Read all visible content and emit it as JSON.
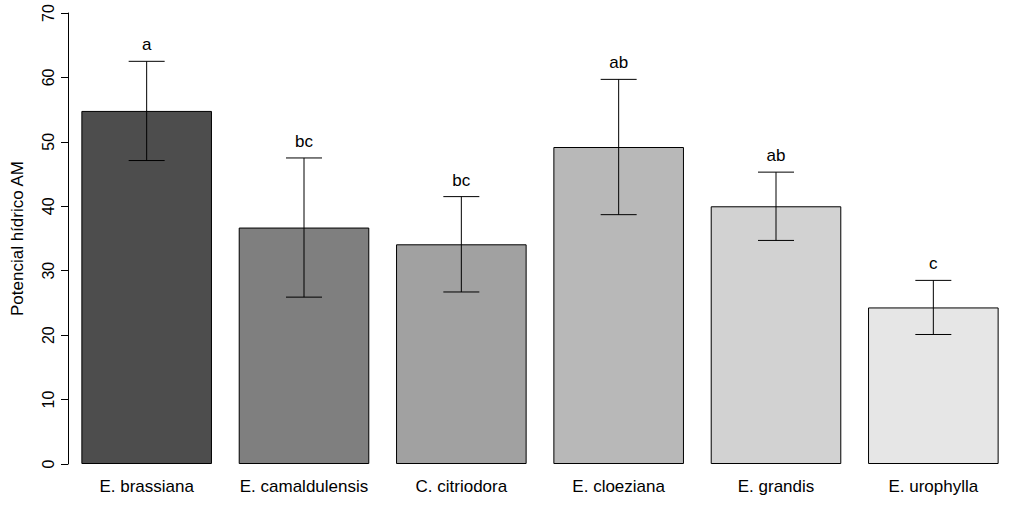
{
  "chart_data": {
    "type": "bar",
    "y_label": "Potencial hídrico AM",
    "categories": [
      "E. brassiana",
      "E. camaldulensis",
      "C. citriodora",
      "E. cloeziana",
      "E. grandis",
      "E. urophylla"
    ],
    "values": [
      54.8,
      36.7,
      34.1,
      49.2,
      40.0,
      24.3
    ],
    "errors": [
      7.7,
      10.8,
      7.4,
      10.5,
      5.3,
      4.2
    ],
    "annotations": [
      "a",
      "bc",
      "bc",
      "ab",
      "ab",
      "c"
    ],
    "colors": [
      "#4d4d4d",
      "#7f7f7f",
      "#a1a1a1",
      "#b8b8b8",
      "#d2d2d2",
      "#e6e6e6"
    ],
    "ylim": [
      0,
      70
    ],
    "yticks": [
      0,
      10,
      20,
      30,
      40,
      50,
      60,
      70
    ],
    "grid": false
  }
}
